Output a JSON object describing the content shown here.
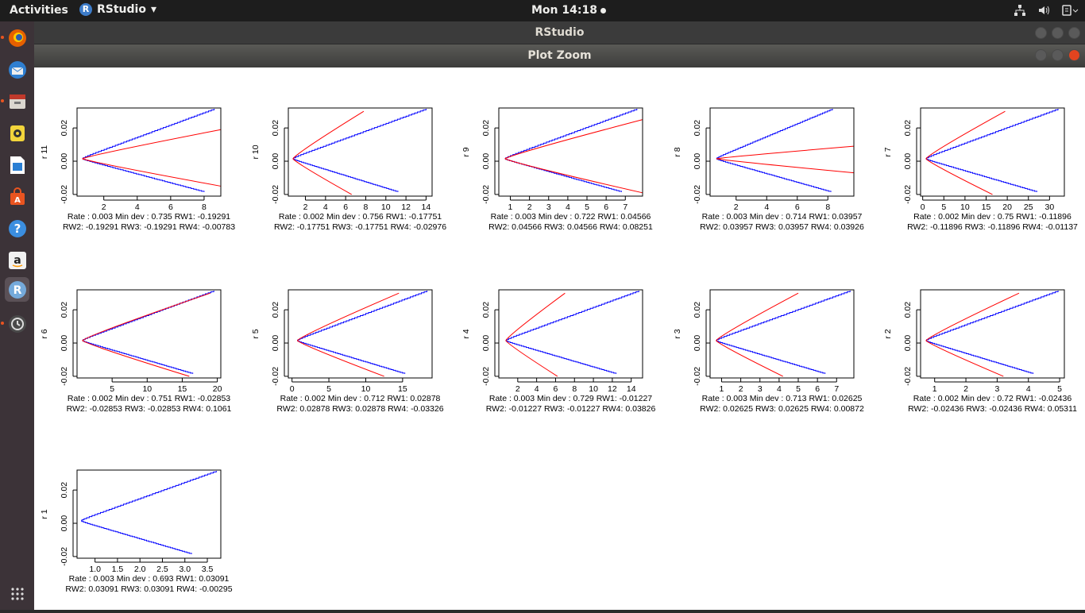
{
  "topbar": {
    "activities": "Activities",
    "app_name": "RStudio",
    "clock": "Mon 14:18"
  },
  "window": {
    "title": "RStudio"
  },
  "zoom_window": {
    "title": "Plot Zoom"
  },
  "chart_data": [
    {
      "type": "line",
      "ylabel": "r 11",
      "xticks": [
        2,
        4,
        6,
        8
      ],
      "xlim": [
        0.4,
        9.0
      ],
      "yticks": [
        "-0.02",
        "0.00",
        "0.02"
      ],
      "ylim": [
        -0.021,
        0.032
      ],
      "blue": {
        "vertex": 0.72,
        "top_end": 8.6,
        "bot_end": 8.0
      },
      "red": {
        "vertex": 0.72,
        "upper": [
          9.0,
          0.019
        ],
        "lower": [
          9.0,
          -0.015
        ]
      },
      "caption1": "Rate : 0.003 Min dev : 0.735 RW1:  -0.19291",
      "caption2": "RW2:  -0.19291 RW3:  -0.19291 RW4:  -0.00783"
    },
    {
      "type": "line",
      "ylabel": "r 10",
      "xticks": [
        2,
        4,
        6,
        8,
        10,
        12,
        14
      ],
      "xlim": [
        0.3,
        14.6
      ],
      "yticks": [
        "-0.02",
        "0.00",
        "0.02"
      ],
      "ylim": [
        -0.021,
        0.032
      ],
      "blue": {
        "vertex": 0.75,
        "top_end": 14.0,
        "bot_end": 11.2
      },
      "red": {
        "vertex": 0.75,
        "upper": [
          7.8,
          0.03
        ],
        "lower": [
          6.6,
          -0.02
        ]
      },
      "caption1": "Rate : 0.002 Min dev : 0.756 RW1:  -0.17751",
      "caption2": "RW2:  -0.17751 RW3:  -0.17751 RW4:  -0.02976"
    },
    {
      "type": "line",
      "ylabel": "r 9",
      "xticks": [
        1,
        2,
        3,
        4,
        5,
        6,
        7
      ],
      "xlim": [
        0.4,
        7.9
      ],
      "yticks": [
        "-0.02",
        "0.00",
        "0.02"
      ],
      "ylim": [
        -0.021,
        0.032
      ],
      "blue": {
        "vertex": 0.72,
        "top_end": 7.6,
        "bot_end": 6.8
      },
      "red": {
        "vertex": 0.72,
        "upper": [
          7.9,
          0.025
        ],
        "lower": [
          7.9,
          -0.019
        ]
      },
      "caption1": "Rate : 0.003 Min dev : 0.722 RW1:  0.04566",
      "caption2": "RW2:  0.04566 RW3:  0.04566 RW4:  0.08251"
    },
    {
      "type": "line",
      "ylabel": "r 8",
      "xticks": [
        2,
        4,
        6,
        8
      ],
      "xlim": [
        0.3,
        9.7
      ],
      "yticks": [
        "-0.02",
        "0.00",
        "0.02"
      ],
      "ylim": [
        -0.021,
        0.032
      ],
      "blue": {
        "vertex": 0.71,
        "top_end": 8.3,
        "bot_end": 8.2
      },
      "red": {
        "vertex": 0.71,
        "upper": [
          9.7,
          0.009
        ],
        "lower": [
          9.7,
          -0.007
        ]
      },
      "caption1": "Rate : 0.003 Min dev : 0.714 RW1:  0.03957",
      "caption2": "RW2:  0.03957 RW3:  0.03957 RW4:  0.03926"
    },
    {
      "type": "line",
      "ylabel": "r 7",
      "xticks": [
        0,
        5,
        10,
        15,
        20,
        25,
        30
      ],
      "xlim": [
        -0.5,
        33.5
      ],
      "yticks": [
        "-0.02",
        "0.00",
        "0.02"
      ],
      "ylim": [
        -0.021,
        0.032
      ],
      "blue": {
        "vertex": 0.75,
        "top_end": 32.0,
        "bot_end": 27.0
      },
      "red": {
        "vertex": 0.75,
        "upper": [
          19.5,
          0.03
        ],
        "lower": [
          16.5,
          -0.02
        ]
      },
      "caption1": "Rate : 0.002 Min dev : 0.75 RW1:  -0.11896",
      "caption2": "RW2:  -0.11896 RW3:  -0.11896 RW4:  -0.01137"
    },
    {
      "type": "line",
      "ylabel": "r 6",
      "xticks": [
        5,
        10,
        15,
        20
      ],
      "xlim": [
        0.0,
        20.5
      ],
      "yticks": [
        "-0.02",
        "0.00",
        "0.02"
      ],
      "ylim": [
        -0.021,
        0.032
      ],
      "blue": {
        "vertex": 0.75,
        "top_end": 19.5,
        "bot_end": 16.5
      },
      "red": {
        "vertex": 0.75,
        "upper": [
          19.0,
          0.03
        ],
        "lower": [
          16.0,
          -0.02
        ]
      },
      "caption1": "Rate : 0.002 Min dev : 0.751 RW1:  -0.02853",
      "caption2": "RW2:  -0.02853 RW3:  -0.02853 RW4:  0.1061"
    },
    {
      "type": "line",
      "ylabel": "r 5",
      "xticks": [
        0,
        5,
        10,
        15
      ],
      "xlim": [
        -0.5,
        19.0
      ],
      "yticks": [
        "-0.02",
        "0.00",
        "0.02"
      ],
      "ylim": [
        -0.021,
        0.032
      ],
      "blue": {
        "vertex": 0.71,
        "top_end": 18.3,
        "bot_end": 15.3
      },
      "red": {
        "vertex": 0.71,
        "upper": [
          14.5,
          0.03
        ],
        "lower": [
          12.5,
          -0.02
        ]
      },
      "caption1": "Rate : 0.002 Min dev : 0.712 RW1:  0.02878",
      "caption2": "RW2:  0.02878 RW3:  0.02878 RW4:  -0.03326"
    },
    {
      "type": "line",
      "ylabel": "r 4",
      "xticks": [
        2,
        4,
        6,
        8,
        10,
        12,
        14
      ],
      "xlim": [
        0.0,
        15.2
      ],
      "yticks": [
        "-0.02",
        "0.00",
        "0.02"
      ],
      "ylim": [
        -0.021,
        0.032
      ],
      "blue": {
        "vertex": 0.73,
        "top_end": 14.8,
        "bot_end": 12.4
      },
      "red": {
        "vertex": 0.73,
        "upper": [
          7.0,
          0.03
        ],
        "lower": [
          6.2,
          -0.02
        ]
      },
      "caption1": "Rate : 0.003 Min dev : 0.729 RW1:  -0.01227",
      "caption2": "RW2:  -0.01227 RW3:  -0.01227 RW4:  0.03826"
    },
    {
      "type": "line",
      "ylabel": "r 3",
      "xticks": [
        1,
        2,
        3,
        4,
        5,
        6,
        7
      ],
      "xlim": [
        0.4,
        7.9
      ],
      "yticks": [
        "-0.02",
        "0.00",
        "0.02"
      ],
      "ylim": [
        -0.021,
        0.032
      ],
      "blue": {
        "vertex": 0.71,
        "top_end": 7.7,
        "bot_end": 6.4
      },
      "red": {
        "vertex": 0.71,
        "upper": [
          5.0,
          0.03
        ],
        "lower": [
          4.2,
          -0.02
        ]
      },
      "caption1": "Rate : 0.003 Min dev : 0.713 RW1:  0.02625",
      "caption2": "RW2:  0.02625 RW3:  0.02625 RW4:  0.00872"
    },
    {
      "type": "line",
      "ylabel": "r 2",
      "xticks": [
        1,
        2,
        3,
        4,
        5
      ],
      "xlim": [
        0.55,
        5.15
      ],
      "yticks": [
        "-0.02",
        "0.00",
        "0.02"
      ],
      "ylim": [
        -0.021,
        0.032
      ],
      "blue": {
        "vertex": 0.72,
        "top_end": 4.95,
        "bot_end": 4.15
      },
      "red": {
        "vertex": 0.72,
        "upper": [
          3.7,
          0.03
        ],
        "lower": [
          3.2,
          -0.02
        ]
      },
      "caption1": "Rate : 0.002 Min dev : 0.72 RW1:  -0.02436",
      "caption2": "RW2:  -0.02436 RW3:  -0.02436 RW4:  0.05311"
    },
    {
      "type": "line",
      "ylabel": "r 1",
      "xticks": [
        "1.0",
        "1.5",
        "2.0",
        "2.5",
        "3.0",
        "3.5"
      ],
      "xlim": [
        0.6,
        3.8
      ],
      "yticks": [
        "-0.02",
        "0.00",
        "0.02"
      ],
      "ylim": [
        -0.021,
        0.032
      ],
      "blue": {
        "vertex": 0.69,
        "top_end": 3.7,
        "bot_end": 3.15
      },
      "red": null,
      "caption1": "Rate : 0.003 Min dev : 0.693 RW1:  0.03091",
      "caption2": "RW2:  0.03091 RW3:  0.03091 RW4:  -0.00295"
    }
  ]
}
